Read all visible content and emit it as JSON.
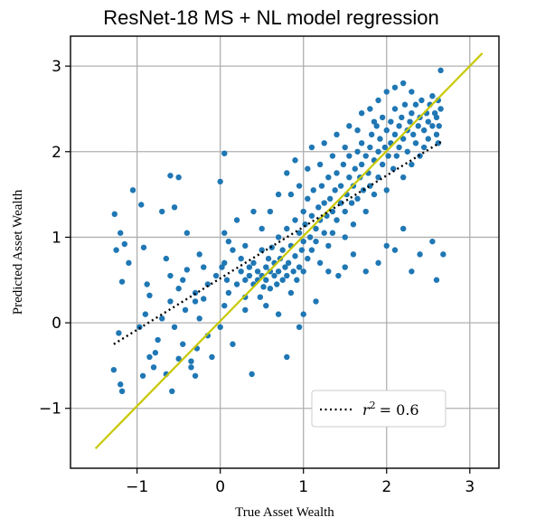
{
  "chart_data": {
    "type": "scatter",
    "title": "ResNet-18 MS + NL model regression",
    "xlabel": "True Asset Wealth",
    "ylabel": "Predicted Asset Wealth",
    "xlim": [
      -1.8,
      3.35
    ],
    "ylim": [
      -1.7,
      3.35
    ],
    "xticks": [
      -1,
      0,
      1,
      2,
      3
    ],
    "yticks": [
      -1,
      0,
      1,
      2,
      3
    ],
    "xtick_labels": [
      "−1",
      "0",
      "1",
      "2",
      "3"
    ],
    "ytick_labels": [
      "−1",
      "0",
      "1",
      "2",
      "3"
    ],
    "grid": true,
    "legend_position": "lower-right",
    "colors": {
      "points": "#1f77b4",
      "identity_line": "#c8c800",
      "fit_line": "#000000",
      "grid": "#b0b0b0"
    },
    "series": [
      {
        "name": "points",
        "kind": "scatter",
        "points": [
          [
            -1.27,
            1.27
          ],
          [
            -1.25,
            0.85
          ],
          [
            -1.2,
            1.05
          ],
          [
            -1.18,
            0.48
          ],
          [
            -1.15,
            0.92
          ],
          [
            -1.1,
            0.7
          ],
          [
            -1.22,
            -0.12
          ],
          [
            -1.28,
            -0.55
          ],
          [
            -1.2,
            -0.72
          ],
          [
            -1.18,
            -0.8
          ],
          [
            -1.05,
            1.55
          ],
          [
            -0.95,
            1.38
          ],
          [
            -0.92,
            0.88
          ],
          [
            -0.88,
            0.45
          ],
          [
            -0.85,
            0.32
          ],
          [
            -0.9,
            0.1
          ],
          [
            -0.97,
            -0.05
          ],
          [
            -0.93,
            -0.62
          ],
          [
            -0.8,
            -0.52
          ],
          [
            -0.78,
            -0.35
          ],
          [
            -0.7,
            1.3
          ],
          [
            -0.6,
            1.72
          ],
          [
            -0.5,
            1.7
          ],
          [
            -0.55,
            1.35
          ],
          [
            -0.65,
            0.75
          ],
          [
            -0.6,
            0.55
          ],
          [
            -0.5,
            0.4
          ],
          [
            -0.42,
            0.15
          ],
          [
            -0.55,
            -0.05
          ],
          [
            -0.45,
            -0.25
          ],
          [
            -0.35,
            -0.45
          ],
          [
            -0.58,
            -0.8
          ],
          [
            -0.5,
            -0.42
          ],
          [
            -0.4,
            0.62
          ],
          [
            -0.3,
            0.35
          ],
          [
            -0.25,
            0.05
          ],
          [
            -0.28,
            -0.3
          ],
          [
            -0.3,
            -0.62
          ],
          [
            -0.2,
            0.28
          ],
          [
            -0.15,
            -0.15
          ],
          [
            -0.4,
            1.05
          ],
          [
            -0.35,
            -0.52
          ],
          [
            -0.1,
            -0.4
          ],
          [
            0.05,
            1.98
          ],
          [
            0.0,
            1.65
          ],
          [
            0.05,
            1.05
          ],
          [
            0.02,
            0.65
          ],
          [
            0.1,
            0.95
          ],
          [
            0.1,
            0.35
          ],
          [
            0.05,
            0.2
          ],
          [
            0.0,
            -0.05
          ],
          [
            0.15,
            -0.25
          ],
          [
            0.08,
            0.5
          ],
          [
            0.2,
            0.45
          ],
          [
            0.25,
            0.6
          ],
          [
            0.25,
            0.75
          ],
          [
            0.3,
            0.5
          ],
          [
            0.3,
            0.3
          ],
          [
            0.35,
            0.55
          ],
          [
            0.35,
            0.65
          ],
          [
            0.38,
            -0.6
          ],
          [
            0.4,
            0.45
          ],
          [
            0.4,
            0.7
          ],
          [
            0.45,
            0.5
          ],
          [
            0.45,
            0.6
          ],
          [
            0.48,
            0.3
          ],
          [
            0.5,
            0.85
          ],
          [
            0.5,
            0.55
          ],
          [
            0.52,
            0.42
          ],
          [
            0.55,
            0.65
          ],
          [
            0.55,
            0.5
          ],
          [
            0.58,
            0.75
          ],
          [
            0.6,
            0.6
          ],
          [
            0.6,
            0.4
          ],
          [
            0.62,
            0.88
          ],
          [
            0.65,
            0.55
          ],
          [
            0.65,
            0.7
          ],
          [
            0.68,
            0.45
          ],
          [
            0.7,
            1.0
          ],
          [
            0.7,
            0.6
          ],
          [
            0.72,
            0.75
          ],
          [
            0.75,
            0.5
          ],
          [
            0.75,
            0.85
          ],
          [
            0.78,
            0.65
          ],
          [
            0.8,
            1.1
          ],
          [
            0.8,
            0.55
          ],
          [
            0.82,
            0.7
          ],
          [
            0.85,
            0.9
          ],
          [
            0.85,
            0.35
          ],
          [
            0.88,
            0.6
          ],
          [
            0.9,
            1.2
          ],
          [
            0.9,
            0.78
          ],
          [
            0.92,
            0.5
          ],
          [
            0.95,
            1.05
          ],
          [
            0.95,
            0.65
          ],
          [
            0.98,
            0.85
          ],
          [
            1.0,
            1.3
          ],
          [
            1.0,
            0.95
          ],
          [
            1.0,
            0.6
          ],
          [
            1.02,
            1.15
          ],
          [
            1.05,
            0.75
          ],
          [
            1.05,
            1.45
          ],
          [
            1.08,
            1.0
          ],
          [
            1.1,
            1.25
          ],
          [
            1.1,
            0.85
          ],
          [
            1.12,
            1.55
          ],
          [
            1.15,
            1.1
          ],
          [
            1.15,
            0.95
          ],
          [
            1.18,
            1.35
          ],
          [
            1.2,
            1.2
          ],
          [
            1.2,
            0.7
          ],
          [
            1.22,
            1.6
          ],
          [
            1.25,
            1.4
          ],
          [
            1.25,
            1.05
          ],
          [
            1.28,
            1.25
          ],
          [
            1.3,
            1.7
          ],
          [
            1.3,
            0.9
          ],
          [
            1.32,
            1.45
          ],
          [
            1.35,
            1.3
          ],
          [
            1.35,
            1.05
          ],
          [
            1.38,
            1.55
          ],
          [
            1.4,
            1.75
          ],
          [
            1.4,
            1.2
          ],
          [
            1.42,
            0.55
          ],
          [
            1.45,
            1.4
          ],
          [
            1.45,
            1.6
          ],
          [
            1.48,
            1.85
          ],
          [
            1.5,
            1.3
          ],
          [
            1.5,
            1.0
          ],
          [
            1.52,
            1.5
          ],
          [
            1.55,
            1.7
          ],
          [
            1.55,
            1.95
          ],
          [
            1.58,
            1.4
          ],
          [
            1.6,
            1.6
          ],
          [
            1.6,
            1.15
          ],
          [
            1.62,
            1.8
          ],
          [
            1.65,
            2.0
          ],
          [
            1.65,
            1.45
          ],
          [
            1.68,
            1.7
          ],
          [
            1.7,
            1.85
          ],
          [
            1.7,
            2.1
          ],
          [
            1.72,
            1.55
          ],
          [
            1.75,
            1.95
          ],
          [
            1.75,
            1.3
          ],
          [
            1.78,
            1.75
          ],
          [
            1.8,
            2.05
          ],
          [
            1.8,
            1.6
          ],
          [
            1.82,
            2.2
          ],
          [
            1.85,
            1.9
          ],
          [
            1.85,
            1.5
          ],
          [
            1.88,
            2.3
          ],
          [
            1.9,
            2.0
          ],
          [
            1.9,
            1.7
          ],
          [
            1.92,
            2.15
          ],
          [
            1.95,
            2.4
          ],
          [
            1.95,
            1.85
          ],
          [
            1.98,
            2.05
          ],
          [
            2.0,
            2.25
          ],
          [
            2.0,
            1.55
          ],
          [
            2.02,
            1.95
          ],
          [
            2.05,
            2.35
          ],
          [
            2.05,
            2.1
          ],
          [
            2.08,
            1.8
          ],
          [
            2.1,
            2.5
          ],
          [
            2.1,
            2.2
          ],
          [
            2.12,
            1.95
          ],
          [
            2.15,
            2.3
          ],
          [
            2.15,
            2.05
          ],
          [
            2.18,
            2.4
          ],
          [
            2.2,
            2.15
          ],
          [
            2.2,
            1.7
          ],
          [
            2.22,
            2.55
          ],
          [
            2.25,
            2.25
          ],
          [
            2.25,
            2.0
          ],
          [
            2.28,
            2.35
          ],
          [
            2.3,
            2.45
          ],
          [
            2.3,
            1.85
          ],
          [
            2.32,
            2.2
          ],
          [
            2.35,
            2.55
          ],
          [
            2.35,
            2.1
          ],
          [
            2.38,
            2.3
          ],
          [
            2.4,
            2.4
          ],
          [
            2.4,
            1.95
          ],
          [
            2.42,
            2.6
          ],
          [
            2.45,
            2.25
          ],
          [
            2.45,
            2.05
          ],
          [
            2.48,
            2.45
          ],
          [
            2.5,
            2.35
          ],
          [
            2.5,
            2.15
          ],
          [
            2.52,
            2.55
          ],
          [
            2.55,
            2.3
          ],
          [
            2.55,
            2.65
          ],
          [
            2.58,
            2.45
          ],
          [
            2.6,
            2.2
          ],
          [
            2.6,
            2.4
          ],
          [
            2.62,
            2.6
          ],
          [
            2.63,
            2.3
          ],
          [
            2.65,
            2.5
          ],
          [
            2.65,
            2.95
          ],
          [
            2.62,
            2.1
          ],
          [
            2.68,
            0.8
          ],
          [
            2.6,
            0.5
          ],
          [
            2.55,
            0.95
          ],
          [
            2.4,
            0.8
          ],
          [
            2.3,
            0.6
          ],
          [
            2.2,
            1.1
          ],
          [
            2.1,
            0.85
          ],
          [
            2.0,
            0.9
          ],
          [
            1.9,
            0.7
          ],
          [
            1.75,
            0.6
          ],
          [
            1.6,
            0.8
          ],
          [
            1.5,
            0.65
          ],
          [
            1.3,
            0.6
          ],
          [
            1.15,
            0.25
          ],
          [
            1.0,
            0.1
          ],
          [
            0.95,
            -0.05
          ],
          [
            0.8,
            -0.4
          ],
          [
            0.7,
            0.1
          ],
          [
            0.55,
            0.2
          ],
          [
            0.3,
            0.15
          ],
          [
            0.5,
            1.1
          ],
          [
            0.6,
            1.3
          ],
          [
            0.7,
            1.5
          ],
          [
            0.8,
            1.75
          ],
          [
            0.85,
            1.5
          ],
          [
            0.9,
            1.9
          ],
          [
            0.95,
            1.6
          ],
          [
            1.05,
            1.8
          ],
          [
            1.1,
            2.05
          ],
          [
            1.2,
            1.85
          ],
          [
            1.25,
            2.1
          ],
          [
            1.35,
            1.95
          ],
          [
            1.4,
            2.2
          ],
          [
            1.5,
            2.05
          ],
          [
            1.55,
            2.3
          ],
          [
            1.65,
            2.25
          ],
          [
            1.7,
            2.45
          ],
          [
            1.8,
            2.5
          ],
          [
            1.85,
            2.35
          ],
          [
            1.9,
            2.6
          ],
          [
            2.0,
            2.7
          ],
          [
            2.1,
            2.75
          ],
          [
            2.2,
            2.8
          ],
          [
            2.3,
            2.7
          ],
          [
            0.4,
            1.3
          ],
          [
            0.2,
            1.2
          ],
          [
            0.3,
            0.9
          ],
          [
            0.15,
            0.85
          ],
          [
            0.05,
            0.7
          ],
          [
            -0.05,
            0.55
          ],
          [
            -0.15,
            0.45
          ],
          [
            -0.2,
            0.65
          ],
          [
            -0.25,
            0.8
          ],
          [
            -0.3,
            0.25
          ],
          [
            -0.45,
            0.5
          ],
          [
            -0.6,
            0.25
          ],
          [
            -0.7,
            0.05
          ],
          [
            -0.75,
            -0.2
          ],
          [
            -0.85,
            -0.4
          ],
          [
            -0.65,
            -0.6
          ]
        ]
      },
      {
        "name": "y = x",
        "kind": "line",
        "points": [
          [
            -1.5,
            -1.47
          ],
          [
            3.15,
            3.15
          ]
        ]
      },
      {
        "name": "r² = 0.6",
        "kind": "line",
        "dashed": true,
        "points": [
          [
            -1.28,
            -0.25
          ],
          [
            2.68,
            2.13
          ]
        ]
      }
    ],
    "legend": {
      "label_text": "= 0.6"
    }
  }
}
